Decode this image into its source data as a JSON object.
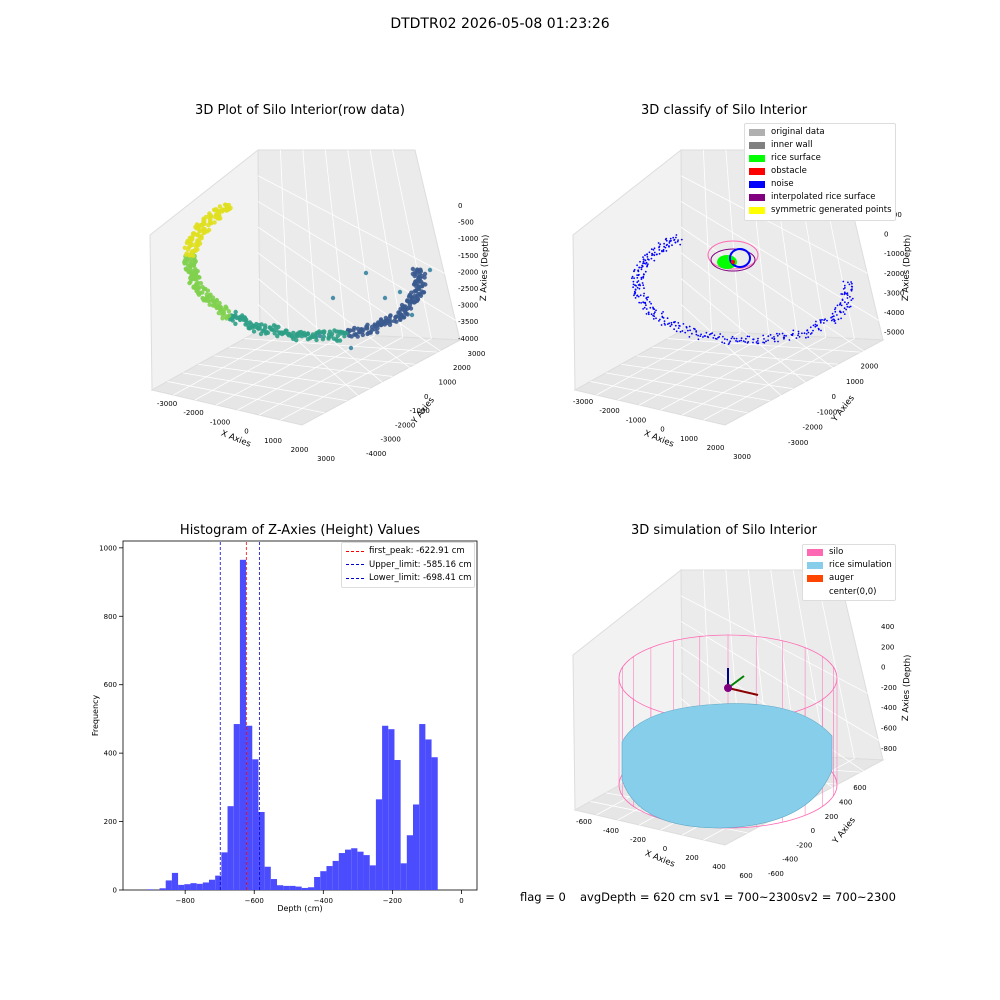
{
  "figure_title": "DTDTR02 2026-05-08 01:23:26",
  "panels": {
    "raw": {
      "title": "3D Plot of Silo Interior(row data)",
      "xlabel": "X Axies",
      "ylabel": "Y Axies",
      "zlabel": "Z Axies (Depth)",
      "xticks": [
        "-3000",
        "-2000",
        "-1000",
        "0",
        "1000",
        "2000",
        "3000"
      ],
      "yticks": [
        "-4000",
        "-3000",
        "-2000",
        "-1000",
        "0",
        "1000",
        "2000",
        "3000"
      ],
      "zticks": [
        "0",
        "-500",
        "-1000",
        "-1500",
        "-2000",
        "-2500",
        "-3000",
        "-3500",
        "-4000"
      ]
    },
    "classify": {
      "title": "3D classify of Silo Interior",
      "xlabel": "X Axies",
      "ylabel": "Y Axies",
      "zlabel": "Z Axies (Depth)",
      "xticks": [
        "-3000",
        "-2000",
        "-1000",
        "0",
        "1000",
        "2000",
        "3000"
      ],
      "yticks": [
        "-3000",
        "-2000",
        "-1000",
        "0",
        "1000",
        "2000"
      ],
      "zticks": [
        "1000",
        "0",
        "-1000",
        "-2000",
        "-3000",
        "-4000",
        "-5000"
      ],
      "legend": [
        {
          "label": "original data",
          "color": "#b0b0b0"
        },
        {
          "label": "inner wall",
          "color": "#808080"
        },
        {
          "label": "rice surface",
          "color": "#00ff00"
        },
        {
          "label": "obstacle",
          "color": "#ff0000"
        },
        {
          "label": "noise",
          "color": "#0000ff"
        },
        {
          "label": "interpolated rice surface",
          "color": "#800080"
        },
        {
          "label": "symmetric generated points",
          "color": "#ffff00"
        }
      ]
    },
    "simulation": {
      "title": "3D simulation of Silo Interior",
      "xlabel": "X Axies",
      "ylabel": "Y Axies",
      "zlabel": "Z Axies (Depth)",
      "xticks": [
        "-600",
        "-400",
        "-200",
        "0",
        "200",
        "400",
        "600"
      ],
      "yticks": [
        "-600",
        "-400",
        "-200",
        "0",
        "200",
        "400",
        "600"
      ],
      "zticks": [
        "400",
        "200",
        "0",
        "-200",
        "-400",
        "-600",
        "-800"
      ],
      "legend": [
        {
          "label": "silo",
          "color": "#ff69b4"
        },
        {
          "label": "rice simulation",
          "color": "#87ceeb"
        },
        {
          "label": "auger",
          "color": "#ff4500"
        },
        {
          "label": "center(0,0)",
          "color": ""
        }
      ]
    }
  },
  "footer": {
    "flag": "flag = 0",
    "avg": "avgDepth = 620 cm",
    "sv1": "sv1 = 700~2300",
    "sv2": "sv2 = 700~2300"
  },
  "colors": {
    "bar": "#4c4cff",
    "first_peak": "#ff0000",
    "limits": "#0000cc"
  },
  "chart_data": [
    {
      "type": "bar",
      "title": "Histogram of Z-Axies (Height) Values",
      "xlabel": "Depth (cm)",
      "ylabel": "Frequency",
      "xlim": [
        -980,
        45
      ],
      "ylim": [
        0,
        1020
      ],
      "xticks": [
        -800,
        -600,
        -400,
        -200,
        0
      ],
      "yticks": [
        0,
        200,
        400,
        600,
        800,
        1000
      ],
      "bin_width": 17.9,
      "bin_start": -910,
      "values": [
        2,
        0,
        5,
        28,
        50,
        15,
        17,
        20,
        18,
        22,
        30,
        42,
        110,
        245,
        485,
        965,
        480,
        382,
        228,
        68,
        32,
        14,
        12,
        12,
        10,
        6,
        8,
        38,
        55,
        70,
        85,
        108,
        118,
        122,
        112,
        102,
        72,
        265,
        480,
        470,
        380,
        78,
        160,
        250,
        485,
        440,
        388
      ],
      "series": [
        {
          "name": "",
          "values": []
        }
      ],
      "lines": [
        {
          "label": "first_peak: -622.91 cm",
          "x": -622.91,
          "color": "#ff0000"
        },
        {
          "label": "Upper_limit: -585.16 cm",
          "x": -585.16,
          "color": "#0000cc"
        },
        {
          "label": "Lower_limit: -698.41 cm",
          "x": -698.41,
          "color": "#0000cc"
        }
      ]
    }
  ]
}
